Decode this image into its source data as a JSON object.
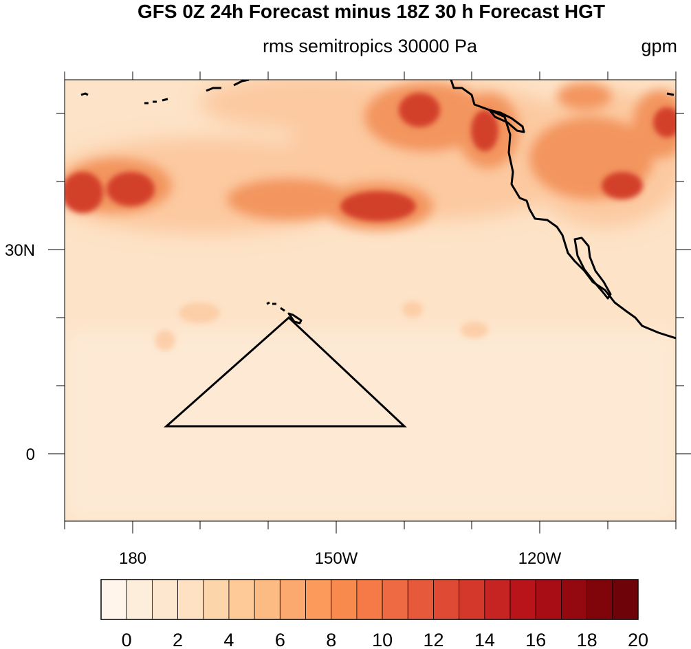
{
  "title": "GFS 0Z 24h Forecast minus 18Z 30 h Forecast HGT",
  "subtitle_left": "rms semitropics 30000 Pa",
  "subtitle_right": "gpm",
  "lon_labels": [
    "180",
    "150W",
    "120W"
  ],
  "lat_labels": [
    "30N",
    "0"
  ],
  "colorbar": {
    "labels": [
      "0",
      "2",
      "4",
      "6",
      "8",
      "10",
      "12",
      "14",
      "16",
      "18",
      "20"
    ],
    "colors": [
      "#fff5eb",
      "#fdeedc",
      "#fde8cf",
      "#fde1c2",
      "#fdd5ab",
      "#fdca98",
      "#fdbb84",
      "#fca96f",
      "#fc9a5c",
      "#f98a4e",
      "#f57a48",
      "#ee6a42",
      "#e65a3b",
      "#de4a33",
      "#d4382b",
      "#c62422",
      "#b8141a",
      "#a80c15",
      "#940810",
      "#80050b",
      "#6e030a"
    ]
  },
  "field_colors": {
    "background": "#fde3c7",
    "light": "#fdebd8",
    "medium": "#fcc9a0",
    "strong": "#f3955f",
    "max": "#d3402b",
    "extreme": "#b8181c"
  },
  "region_outline": "triangle"
}
